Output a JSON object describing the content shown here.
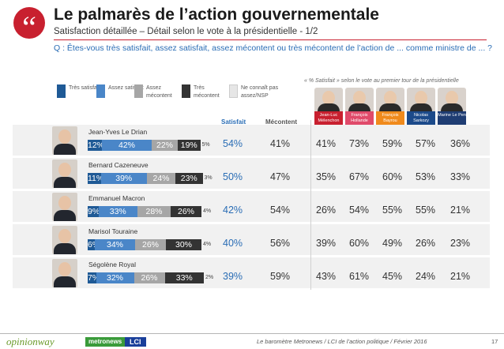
{
  "header": {
    "title": "Le palmarès de l’action gouvernementale",
    "subtitle": "Satisfaction détaillée – Détail selon le vote à la présidentielle - 1/2",
    "question": "Q : Êtes-vous très satisfait, assez satisfait, assez mécontent ou très mécontent de l’action de ... comme ministre de ... ?",
    "quote_glyph": "“"
  },
  "legend": [
    {
      "label": "Très satisfait",
      "color": "#1f5a96"
    },
    {
      "label": "Assez satisfait",
      "color": "#4a86c8"
    },
    {
      "label": "Assez mécontent",
      "color": "#a6a6a6"
    },
    {
      "label": "Très mécontent",
      "color": "#333333"
    },
    {
      "label": "Ne connaît pas assez/NSP",
      "color": "#e6e6e6"
    }
  ],
  "right_note": "« % Satisfait » selon le vote au premier tour de la présidentielle",
  "column_headers": {
    "satisfait": "Satisfait",
    "mecontent": "Mécontent"
  },
  "candidates": [
    {
      "name": "Jean-Luc Mélenchon",
      "color": "#c8202f"
    },
    {
      "name": "François Hollande",
      "color": "#e04a6a"
    },
    {
      "name": "François Bayrou",
      "color": "#f08a1c"
    },
    {
      "name": "Nicolas Sarkozy",
      "color": "#1c4a8a"
    },
    {
      "name": "Marine Le Pen",
      "color": "#1f3d73"
    }
  ],
  "chart_data": {
    "type": "bar",
    "title": "Le palmarès de l’action gouvernementale",
    "stacked": true,
    "categories": [
      "Jean-Yves Le Drian",
      "Bernard Cazeneuve",
      "Emmanuel Macron",
      "Marisol Touraine",
      "Ségolène Royal"
    ],
    "series": [
      {
        "name": "Très satisfait",
        "values": [
          12,
          11,
          9,
          6,
          7
        ]
      },
      {
        "name": "Assez satisfait",
        "values": [
          42,
          39,
          33,
          34,
          32
        ]
      },
      {
        "name": "Assez mécontent",
        "values": [
          22,
          24,
          28,
          26,
          26
        ]
      },
      {
        "name": "Très mécontent",
        "values": [
          19,
          23,
          26,
          30,
          33
        ]
      },
      {
        "name": "Ne connaît pas assez/NSP",
        "values": [
          5,
          3,
          4,
          4,
          2
        ]
      }
    ],
    "totals": {
      "Satisfait": [
        54,
        50,
        42,
        40,
        39
      ],
      "Mécontent": [
        41,
        47,
        54,
        56,
        59
      ]
    },
    "by_vote": {
      "voters": [
        "Jean-Luc Mélenchon",
        "François Hollande",
        "François Bayrou",
        "Nicolas Sarkozy",
        "Marine Le Pen"
      ],
      "satisfait": [
        [
          41,
          73,
          59,
          57,
          36
        ],
        [
          35,
          67,
          60,
          53,
          33
        ],
        [
          26,
          54,
          55,
          55,
          21
        ],
        [
          39,
          60,
          49,
          26,
          23
        ],
        [
          43,
          61,
          45,
          24,
          21
        ]
      ]
    },
    "xlim": [
      0,
      100
    ]
  },
  "footer": {
    "logo_opinionway": "opinionway",
    "logo_metronews": "metronews",
    "logo_lci": "LCI",
    "caption": "Le baromètre Metronews / LCI de l’action politique / Février 2016",
    "page": "17"
  }
}
